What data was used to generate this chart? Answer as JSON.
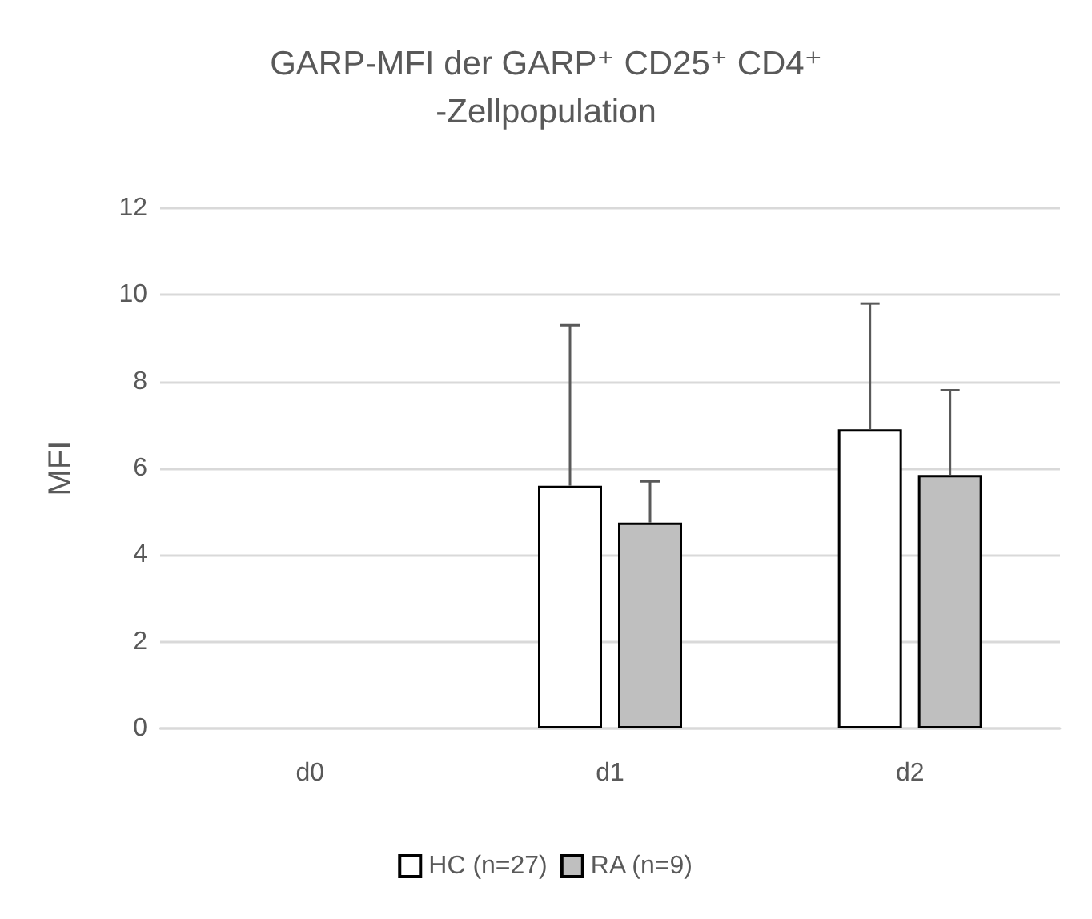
{
  "chart_data": {
    "type": "bar",
    "title": "GARP-MFI der GARP⁺ CD25⁺ CD4⁺-Zellpopulation",
    "ylabel": "MFI",
    "categories": [
      "d0",
      "d1",
      "d2"
    ],
    "series": [
      {
        "name": "HC (n=27)",
        "color": "#ffffff",
        "values": [
          null,
          5.6,
          6.9
        ],
        "errors": [
          null,
          [
            5.6,
            9.3
          ],
          [
            6.9,
            9.8
          ]
        ]
      },
      {
        "name": "RA (n=9)",
        "color": "#bfbfbf",
        "values": [
          null,
          4.75,
          5.85
        ],
        "errors": [
          null,
          [
            4.75,
            5.7
          ],
          [
            5.85,
            7.8
          ]
        ]
      }
    ],
    "ylim": [
      0,
      12
    ],
    "yticks": [
      0,
      2,
      4,
      6,
      8,
      10,
      12
    ],
    "grid": "y",
    "legend": "bottom"
  }
}
